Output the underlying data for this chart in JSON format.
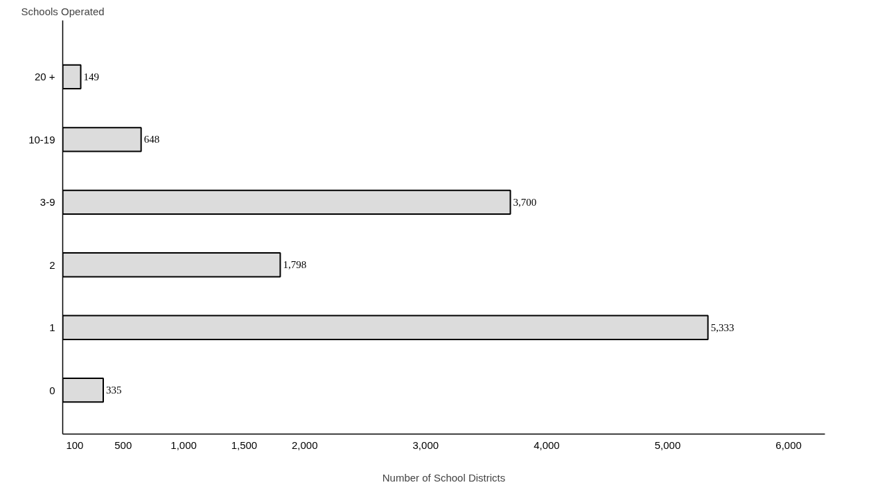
{
  "chart_data": {
    "type": "bar",
    "orientation": "horizontal",
    "ylabel": "Schools Operated",
    "xlabel": "Number of School Districts",
    "categories": [
      "20 +",
      "10-19",
      "3-9",
      "2",
      "1",
      "0"
    ],
    "values": [
      149,
      648,
      3700,
      1798,
      5333,
      335
    ],
    "value_labels": [
      "149",
      "648",
      "3,700",
      "1,798",
      "5,333",
      "335"
    ],
    "color": "#dcdcdc",
    "xlim": [
      0,
      6300
    ],
    "xticks": [
      100,
      500,
      {
        "value": 1000,
        "label": "1,000"
      },
      {
        "value": 1500,
        "label": "1,500"
      },
      {
        "value": 2000,
        "label": "2,000"
      },
      {
        "value": 3000,
        "label": "3,000"
      },
      {
        "value": 4000,
        "label": "4,000"
      },
      {
        "value": 5000,
        "label": "5,000"
      },
      {
        "value": 6000,
        "label": "6,000"
      }
    ],
    "grid": false
  }
}
